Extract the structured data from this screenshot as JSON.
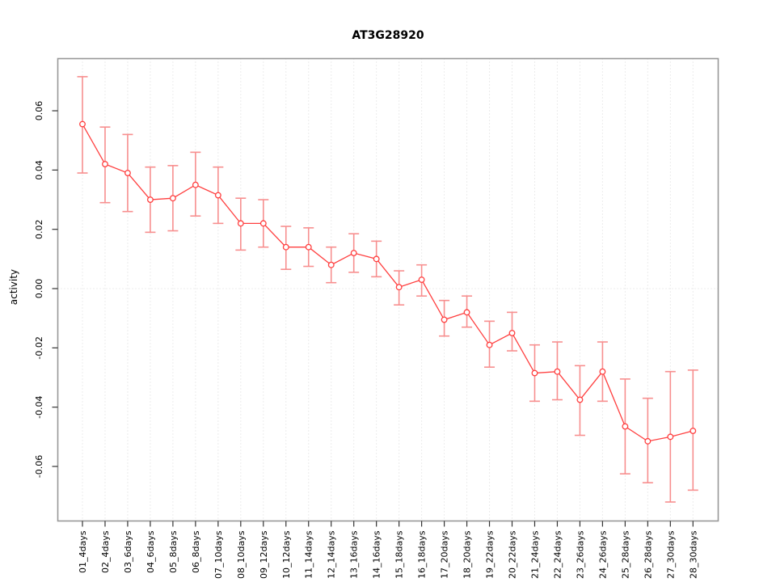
{
  "figure": {
    "title": "AT3G28920",
    "ylabel": "activity"
  },
  "chart_data": {
    "type": "line",
    "subtype": "points-with-error-bars",
    "title": "AT3G28920",
    "xlabel": "",
    "ylabel": "activity",
    "legend_position": "none",
    "grid": "vertical dotted gridline at every category; horizontal dotted line at y=0",
    "ylim": [
      -0.0784,
      0.0776
    ],
    "yticks": [
      -0.06,
      -0.04,
      -0.02,
      0.0,
      0.02,
      0.04,
      0.06
    ],
    "categories": [
      "01_4days",
      "02_4days",
      "03_6days",
      "04_6days",
      "05_8days",
      "06_8days",
      "07_10days",
      "08_10days",
      "09_12days",
      "10_12days",
      "11_14days",
      "12_14days",
      "13_16days",
      "14_16days",
      "15_18days",
      "16_18days",
      "17_20days",
      "18_20days",
      "19_22days",
      "20_22days",
      "21_24days",
      "22_24days",
      "23_26days",
      "24_26days",
      "25_28days",
      "26_28days",
      "27_30days",
      "28_30days"
    ],
    "series": [
      {
        "name": "activity",
        "values": [
          0.0555,
          0.042,
          0.039,
          0.03,
          0.0305,
          0.035,
          0.0315,
          0.022,
          0.022,
          0.014,
          0.014,
          0.008,
          0.012,
          0.01,
          0.0005,
          0.003,
          -0.0105,
          -0.008,
          -0.019,
          -0.015,
          -0.0285,
          -0.028,
          -0.0375,
          -0.028,
          -0.0465,
          -0.0515,
          -0.05,
          -0.048
        ],
        "upper": [
          0.0715,
          0.0545,
          0.052,
          0.041,
          0.0415,
          0.046,
          0.041,
          0.0305,
          0.03,
          0.021,
          0.0205,
          0.014,
          0.0185,
          0.016,
          0.006,
          0.008,
          -0.004,
          -0.0025,
          -0.011,
          -0.008,
          -0.019,
          -0.018,
          -0.026,
          -0.018,
          -0.0305,
          -0.037,
          -0.028,
          -0.0275
        ],
        "lower": [
          0.039,
          0.029,
          0.026,
          0.019,
          0.0195,
          0.0245,
          0.022,
          0.013,
          0.014,
          0.0065,
          0.0075,
          0.002,
          0.0055,
          0.004,
          -0.0055,
          -0.0025,
          -0.016,
          -0.013,
          -0.0265,
          -0.021,
          -0.038,
          -0.0375,
          -0.0495,
          -0.038,
          -0.0625,
          -0.0655,
          -0.072,
          -0.068
        ]
      }
    ],
    "colors": {
      "line": "#ff4040",
      "point_stroke": "#ff4040",
      "point_fill": "#ffffff",
      "error_bar": "#f78f8f",
      "gridline": "#d9d9d9",
      "box_border": "#979797",
      "tick": "#333333",
      "text": "#000000",
      "background": "#ffffff"
    }
  }
}
